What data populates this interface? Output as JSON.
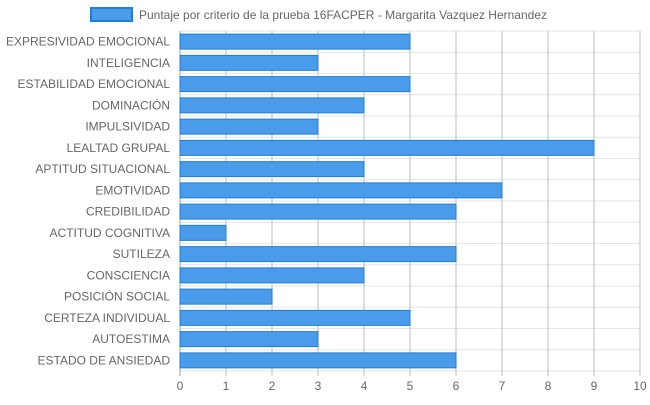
{
  "chart_data": {
    "type": "bar",
    "orientation": "horizontal",
    "legend_position": "top",
    "grid": true,
    "xlim": [
      0,
      10
    ],
    "x_ticks": [
      "0",
      "1",
      "2",
      "3",
      "4",
      "5",
      "6",
      "7",
      "8",
      "9",
      "10"
    ],
    "categories": [
      "EXPRESIVIDAD EMOCIONAL",
      "INTELIGENCIA",
      "ESTABILIDAD EMOCIONAL",
      "DOMINACIÓN",
      "IMPULSIVIDAD",
      "LEALTAD GRUPAL",
      "APTITUD SITUACIONAL",
      "EMOTIVIDAD",
      "CREDIBILIDAD",
      "ACTITUD COGNITIVA",
      "SUTILEZA",
      "CONSCIENCIA",
      "POSICIÓN SOCIAL",
      "CERTEZA INDIVIDUAL",
      "AUTOESTIMA",
      "ESTADO DE ANSIEDAD"
    ],
    "series": [
      {
        "name": "Puntaje por criterio de la prueba 16FACPER - Margarita Vazquez Hernandez",
        "color": "#4a9bea",
        "border_color": "#1e7fd8",
        "values": [
          5,
          3,
          5,
          4,
          3,
          9,
          4,
          7,
          6,
          1,
          6,
          4,
          2,
          5,
          3,
          6
        ]
      }
    ]
  }
}
